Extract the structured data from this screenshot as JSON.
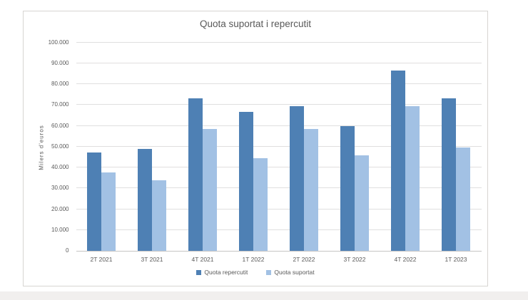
{
  "chart_data": {
    "type": "bar",
    "title": "Quota suportat i repercutit",
    "xlabel": "",
    "ylabel": "Milers d'euros",
    "categories": [
      "2T 2021",
      "3T 2021",
      "4T 2021",
      "1T 2022",
      "2T 2022",
      "3T 2022",
      "4T 2022",
      "1T 2023"
    ],
    "series": [
      {
        "name": "Quota repercutit",
        "color": "#4e80b4",
        "values": [
          47200,
          49000,
          73300,
          66800,
          69400,
          59900,
          86400,
          73200
        ]
      },
      {
        "name": "Quota suportat",
        "color": "#a2c1e4",
        "values": [
          37500,
          34000,
          58600,
          44300,
          58300,
          45700,
          69300,
          49600
        ]
      }
    ],
    "ylim": [
      0,
      100000
    ],
    "ytick_step": 10000,
    "yticks": [
      "0",
      "10.000",
      "20.000",
      "30.000",
      "40.000",
      "50.000",
      "60.000",
      "70.000",
      "80.000",
      "90.000",
      "100.000"
    ],
    "grid": "horizontal",
    "legend_position": "bottom"
  },
  "colors": {
    "text": "#595959",
    "gridline": "#e0dfdf",
    "axis_line": "#c6c5c4",
    "frame_border": "#d7d5d2",
    "page_strip": "#f1efee"
  }
}
